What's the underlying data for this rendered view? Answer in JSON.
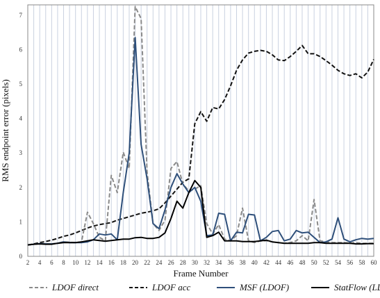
{
  "chart_data": {
    "type": "line",
    "xlabel": "Frame Number",
    "ylabel": "RMS endpoint error (pixels)",
    "xlim": [
      2,
      60
    ],
    "ylim": [
      0,
      7.3
    ],
    "grid": "vertical lines at every frame",
    "legend_position": "bottom",
    "x_ticks": [
      2,
      4,
      6,
      8,
      10,
      12,
      14,
      16,
      18,
      20,
      22,
      24,
      26,
      28,
      30,
      32,
      34,
      36,
      38,
      40,
      42,
      44,
      46,
      48,
      50,
      52,
      54,
      56,
      58,
      60
    ],
    "y_ticks": [
      0,
      1,
      2,
      3,
      4,
      5,
      6,
      7
    ],
    "x": [
      2,
      3,
      4,
      5,
      6,
      7,
      8,
      9,
      10,
      11,
      12,
      13,
      14,
      15,
      16,
      17,
      18,
      19,
      20,
      21,
      22,
      23,
      24,
      25,
      26,
      27,
      28,
      29,
      30,
      31,
      32,
      33,
      34,
      35,
      36,
      37,
      38,
      39,
      40,
      41,
      42,
      43,
      44,
      45,
      46,
      47,
      48,
      49,
      50,
      51,
      52,
      53,
      54,
      55,
      56,
      57,
      58,
      59,
      60
    ],
    "series": [
      {
        "name": "LDOF direct",
        "color": "#8a8a8a",
        "dash": "dashed",
        "values": [
          0.33,
          0.35,
          0.37,
          0.36,
          0.36,
          0.38,
          0.42,
          0.41,
          0.4,
          0.42,
          1.28,
          0.95,
          0.55,
          0.45,
          2.35,
          1.85,
          3.02,
          2.55,
          7.25,
          6.9,
          2.45,
          0.95,
          0.75,
          1.05,
          2.55,
          2.75,
          2.1,
          1.9,
          1.95,
          2.05,
          0.95,
          0.65,
          0.92,
          0.5,
          0.45,
          0.6,
          1.4,
          0.45,
          0.4,
          0.45,
          0.45,
          0.42,
          0.4,
          0.38,
          0.4,
          0.45,
          0.6,
          0.45,
          1.65,
          0.45,
          0.42,
          0.4,
          0.4,
          0.4,
          0.38,
          0.4,
          0.38,
          0.38,
          0.38
        ]
      },
      {
        "name": "LDOF acc",
        "color": "#111111",
        "dash": "dashed",
        "values": [
          0.33,
          0.36,
          0.4,
          0.43,
          0.47,
          0.52,
          0.58,
          0.62,
          0.68,
          0.75,
          0.82,
          0.88,
          0.92,
          0.95,
          0.98,
          1.05,
          1.1,
          1.15,
          1.2,
          1.25,
          1.28,
          1.32,
          1.38,
          1.55,
          1.75,
          1.95,
          2.15,
          2.25,
          3.85,
          4.2,
          3.92,
          4.32,
          4.28,
          4.55,
          4.95,
          5.4,
          5.7,
          5.9,
          5.95,
          5.98,
          5.95,
          5.85,
          5.7,
          5.68,
          5.8,
          5.95,
          6.12,
          5.88,
          5.88,
          5.8,
          5.68,
          5.55,
          5.4,
          5.3,
          5.25,
          5.3,
          5.18,
          5.35,
          5.72
        ]
      },
      {
        "name": "MSF (LDOF)",
        "color": "#2e4f7a",
        "dash": "solid",
        "values": [
          0.33,
          0.35,
          0.37,
          0.36,
          0.36,
          0.38,
          0.42,
          0.4,
          0.4,
          0.4,
          0.42,
          0.48,
          0.65,
          0.62,
          0.65,
          0.48,
          1.85,
          3.0,
          6.35,
          3.25,
          2.25,
          0.95,
          0.8,
          1.35,
          2.0,
          2.4,
          2.1,
          1.85,
          2.0,
          1.6,
          0.6,
          0.62,
          1.25,
          1.22,
          0.45,
          0.7,
          0.68,
          1.22,
          1.2,
          0.45,
          0.55,
          0.72,
          0.75,
          0.45,
          0.5,
          0.75,
          0.68,
          0.7,
          0.55,
          0.4,
          0.42,
          0.5,
          1.12,
          0.5,
          0.42,
          0.48,
          0.52,
          0.5,
          0.52
        ]
      },
      {
        "name": "StatFlow (LDOF)",
        "color": "#000000",
        "dash": "solid",
        "values": [
          0.33,
          0.35,
          0.36,
          0.35,
          0.35,
          0.38,
          0.4,
          0.4,
          0.4,
          0.42,
          0.45,
          0.48,
          0.46,
          0.44,
          0.46,
          0.48,
          0.5,
          0.5,
          0.54,
          0.55,
          0.52,
          0.52,
          0.55,
          0.68,
          1.1,
          1.6,
          1.4,
          1.85,
          2.2,
          2.0,
          0.55,
          0.6,
          0.7,
          0.45,
          0.45,
          0.45,
          0.43,
          0.43,
          0.43,
          0.45,
          0.47,
          0.42,
          0.4,
          0.38,
          0.38,
          0.38,
          0.38,
          0.38,
          0.4,
          0.4,
          0.38,
          0.38,
          0.38,
          0.38,
          0.38,
          0.36,
          0.36,
          0.37,
          0.37
        ]
      }
    ]
  }
}
